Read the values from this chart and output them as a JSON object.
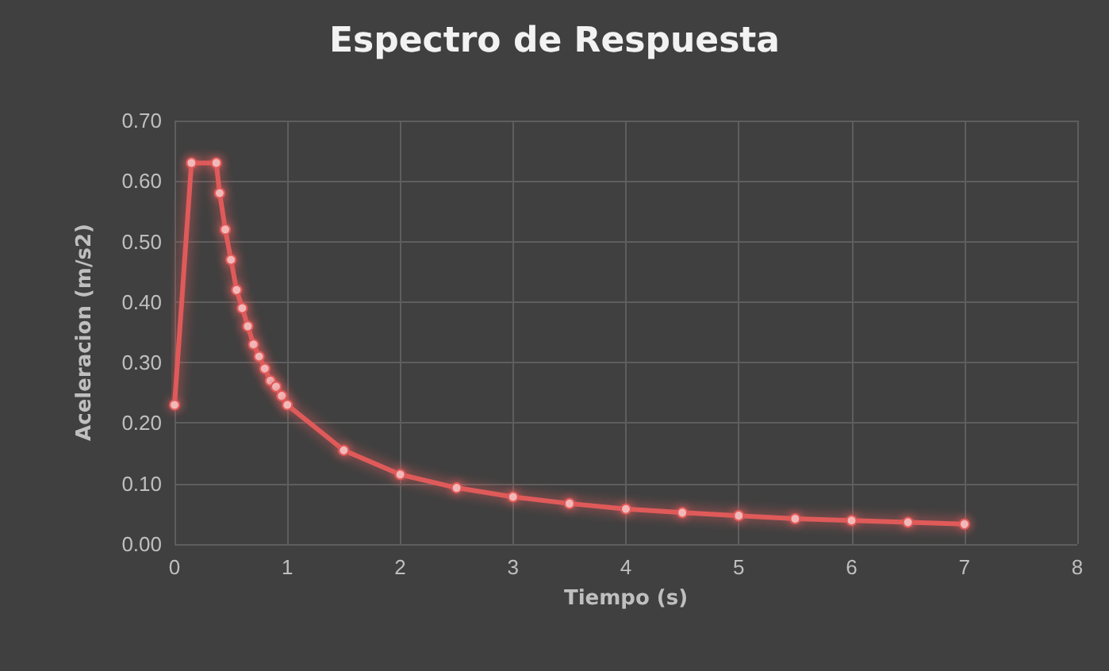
{
  "chart_data": {
    "type": "line",
    "title": "Espectro de Respuesta",
    "xlabel": "Tiempo (s)",
    "ylabel": "Aceleracion (m/s2)",
    "x": [
      0,
      0.15,
      0.37,
      0.4,
      0.45,
      0.5,
      0.55,
      0.6,
      0.65,
      0.7,
      0.75,
      0.8,
      0.85,
      0.9,
      0.95,
      1.0,
      1.5,
      2,
      2.5,
      3,
      3.5,
      4,
      4.5,
      5,
      5.5,
      6,
      6.5,
      7
    ],
    "series": [
      {
        "color": "#e05a5a",
        "values": [
          0.23,
          0.63,
          0.63,
          0.58,
          0.52,
          0.47,
          0.42,
          0.39,
          0.36,
          0.33,
          0.31,
          0.29,
          0.27,
          0.26,
          0.245,
          0.23,
          0.155,
          0.115,
          0.093,
          0.078,
          0.067,
          0.058,
          0.052,
          0.047,
          0.042,
          0.039,
          0.036,
          0.033
        ]
      }
    ],
    "xlim": [
      0,
      8
    ],
    "xticks": [
      0,
      1,
      2,
      3,
      4,
      5,
      6,
      7,
      8
    ],
    "ylim": [
      0,
      0.7
    ],
    "yticks": [
      {
        "value": 0,
        "label": "0.00"
      },
      {
        "value": 0.1,
        "label": "0.10"
      },
      {
        "value": 0.2,
        "label": "0.20"
      },
      {
        "value": 0.3,
        "label": "0.30"
      },
      {
        "value": 0.4,
        "label": "0.40"
      },
      {
        "value": 0.5,
        "label": "0.50"
      },
      {
        "value": 0.6,
        "label": "0.60"
      },
      {
        "value": 0.7,
        "label": "0.70"
      }
    ],
    "grid": true,
    "marker": "circle",
    "line_style": "solid"
  }
}
